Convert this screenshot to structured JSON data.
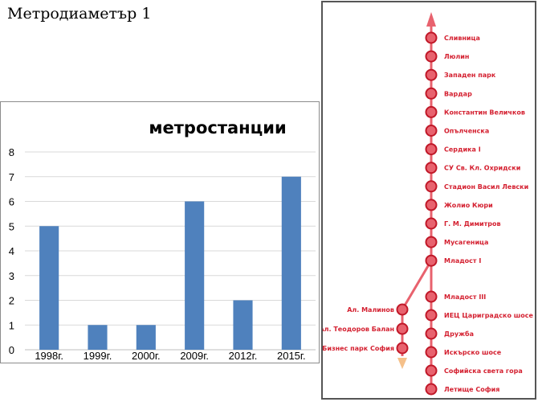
{
  "document": {
    "title": "Метродиаметър 1"
  },
  "chart_data": {
    "type": "bar",
    "title": "метростанции",
    "xlabel": "",
    "ylabel": "",
    "categories": [
      "1998г.",
      "1999г.",
      "2000г.",
      "2009г.",
      "2012г.",
      "2015г."
    ],
    "values": [
      5,
      1,
      1,
      6,
      2,
      7
    ],
    "ylim": [
      0,
      8
    ],
    "yticks": [
      0,
      1,
      2,
      3,
      4,
      5,
      6,
      7,
      8
    ],
    "grid": true,
    "legend": "none",
    "colors": {
      "bar": "#4f81bd",
      "grid": "#d9d9d9"
    }
  },
  "metro_map": {
    "line_color": "#e8626e",
    "station_fill": "#e8626e",
    "station_stroke": "#c01828",
    "label_color": "#d42030",
    "branch_arrow_color": "#f5c08a",
    "main_line_top": [
      "Сливница",
      "Люлин",
      "Западен парк",
      "Вардар",
      "Константин Величков",
      "Опълченска",
      "Сердика I",
      "СУ Св. Кл. Охридски",
      "Стадион Васил Левски",
      "Жолио Кюри",
      "Г. М. Димитров",
      "Мусагеница",
      "Младост I"
    ],
    "main_line_bottom": [
      "Младост III",
      "ИЕЦ Цариградско шосе",
      "Дружба",
      "Искърско шосе",
      "Софийска света гора",
      "Летище София"
    ],
    "branch": [
      "Ал. Малинов",
      "Ал. Теодоров Балан",
      "Бизнес парк София"
    ]
  }
}
